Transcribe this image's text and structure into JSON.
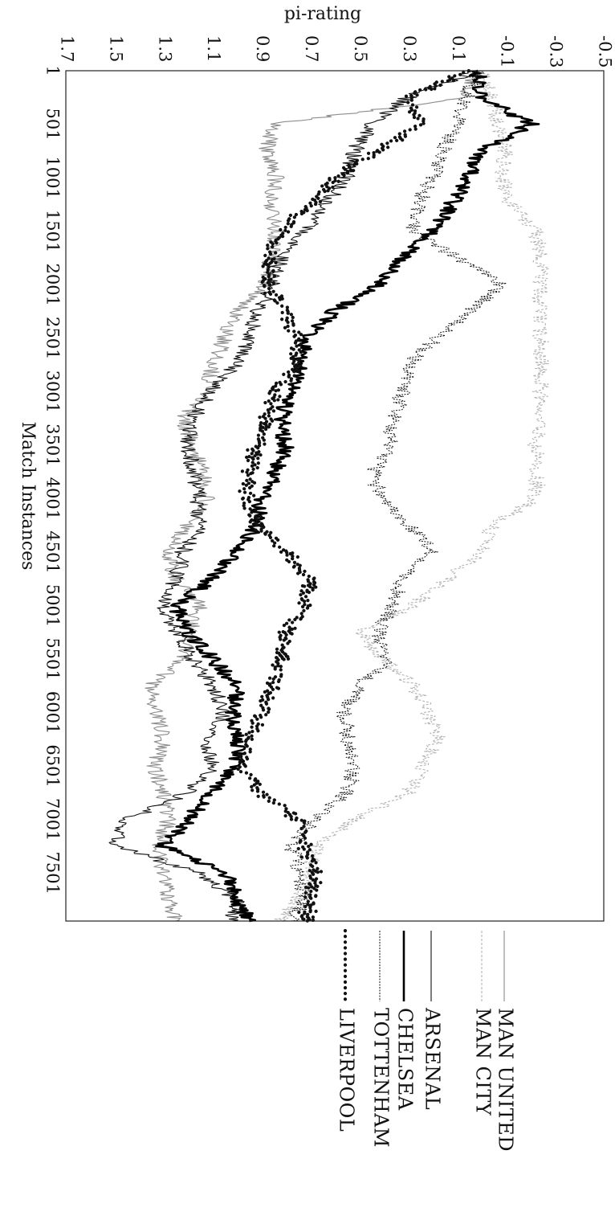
{
  "chart_data": {
    "type": "line",
    "orientation": "rotated 90° clockwise (x runs top-to-bottom, y runs right-to-left)",
    "title": "",
    "xlabel": "Match Instances",
    "ylabel": "pi-rating",
    "xlim": [
      1,
      7950
    ],
    "ylim": [
      -0.5,
      1.7
    ],
    "x_ticks": [
      "1",
      "501",
      "1001",
      "1501",
      "2001",
      "2501",
      "3001",
      "3501",
      "4001",
      "4501",
      "5001",
      "5501",
      "6001",
      "6501",
      "7001",
      "7501"
    ],
    "y_ticks": [
      "-0.5",
      "-0.3",
      "-0.1",
      "0.1",
      "0.3",
      "0.5",
      "0.7",
      "0.9",
      "1.1",
      "1.3",
      "1.5",
      "1.7"
    ],
    "grid": false,
    "legend_position": "right (bottom of page)",
    "x": [
      1,
      250,
      500,
      750,
      1000,
      1250,
      1500,
      1750,
      2000,
      2250,
      2500,
      2750,
      3000,
      3250,
      3500,
      3750,
      4000,
      4250,
      4500,
      4750,
      5000,
      5250,
      5500,
      5750,
      6000,
      6250,
      6500,
      6750,
      7000,
      7250,
      7500,
      7750,
      7950
    ],
    "series": [
      {
        "name": "MAN UNITED",
        "color": "#8c8c8c",
        "style": "solid-gray",
        "values": [
          0.02,
          0.08,
          0.85,
          0.88,
          0.84,
          0.86,
          0.84,
          0.86,
          0.88,
          1.0,
          1.05,
          1.1,
          1.12,
          1.22,
          1.18,
          1.14,
          1.12,
          1.2,
          1.28,
          1.25,
          1.15,
          1.2,
          1.22,
          1.35,
          1.33,
          1.3,
          1.34,
          1.3,
          1.28,
          1.32,
          1.3,
          1.28,
          1.25
        ]
      },
      {
        "name": "MAN CITY",
        "color": "#b4b4b4",
        "style": "dashed-lightgray",
        "values": [
          0.0,
          -0.04,
          -0.07,
          -0.1,
          -0.08,
          -0.12,
          -0.22,
          -0.24,
          -0.24,
          -0.24,
          -0.24,
          -0.24,
          -0.24,
          -0.24,
          -0.22,
          -0.23,
          -0.22,
          -0.05,
          0.0,
          0.14,
          0.28,
          0.5,
          0.4,
          0.28,
          0.22,
          0.18,
          0.24,
          0.3,
          0.52,
          0.68,
          0.7,
          0.75,
          0.82
        ]
      },
      {
        "name": "ARSENAL",
        "color": "#111111",
        "style": "solid-thin",
        "values": [
          0.02,
          0.3,
          0.45,
          0.52,
          0.55,
          0.64,
          0.72,
          0.82,
          0.85,
          0.92,
          0.95,
          1.0,
          1.1,
          1.18,
          1.2,
          1.18,
          1.16,
          1.15,
          1.22,
          1.25,
          1.3,
          1.25,
          1.18,
          1.1,
          1.05,
          1.12,
          1.1,
          1.2,
          1.45,
          1.5,
          1.15,
          1.0,
          1.02
        ]
      },
      {
        "name": "CHELSEA",
        "color": "#000000",
        "style": "solid-thick",
        "values": [
          0.02,
          0.0,
          -0.2,
          0.0,
          0.06,
          0.12,
          0.2,
          0.32,
          0.42,
          0.6,
          0.72,
          0.74,
          0.78,
          0.82,
          0.8,
          0.84,
          0.9,
          0.92,
          1.0,
          1.1,
          1.25,
          1.2,
          1.1,
          1.0,
          1.02,
          1.0,
          1.0,
          1.1,
          1.2,
          1.3,
          1.05,
          1.0,
          0.95
        ]
      },
      {
        "name": "TOTTENHAM",
        "color": "#111111",
        "style": "dashed-black",
        "values": [
          0.02,
          0.06,
          0.1,
          0.16,
          0.2,
          0.26,
          0.28,
          0.1,
          -0.08,
          0.05,
          0.18,
          0.3,
          0.32,
          0.36,
          0.38,
          0.44,
          0.42,
          0.3,
          0.2,
          0.32,
          0.36,
          0.42,
          0.38,
          0.5,
          0.56,
          0.55,
          0.52,
          0.55,
          0.68,
          0.78,
          0.74,
          0.72,
          0.78
        ]
      },
      {
        "name": "LIVERPOOL",
        "color": "#111111",
        "style": "dotted",
        "values": [
          0.05,
          0.3,
          0.25,
          0.42,
          0.6,
          0.7,
          0.82,
          0.86,
          0.88,
          0.8,
          0.76,
          0.75,
          0.84,
          0.88,
          0.92,
          0.95,
          0.96,
          0.92,
          0.8,
          0.7,
          0.72,
          0.8,
          0.82,
          0.85,
          0.9,
          0.95,
          0.98,
          0.9,
          0.75,
          0.72,
          0.68,
          0.7,
          0.72
        ]
      }
    ]
  }
}
